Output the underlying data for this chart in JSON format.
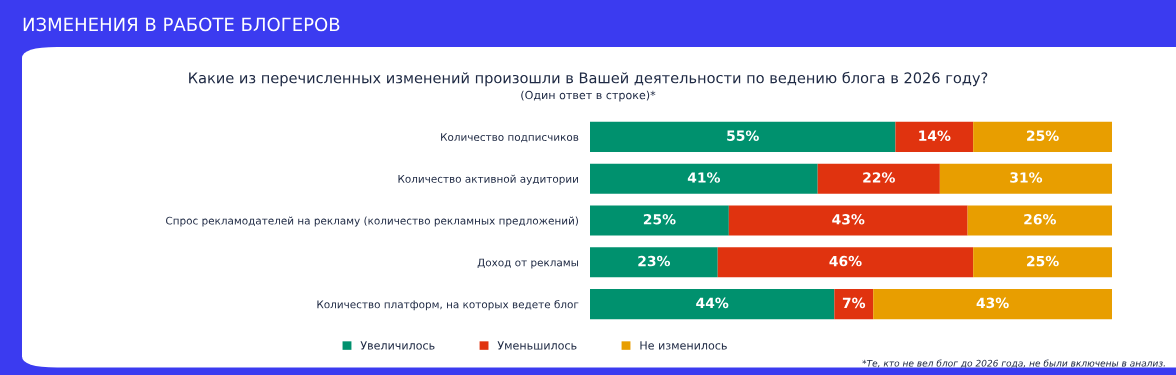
{
  "chart_data": {
    "type": "bar",
    "orientation": "horizontal",
    "stacked": true,
    "legend": "bottom",
    "title": "ИЗМЕНЕНИЯ В РАБОТЕ БЛОГЕРОВ",
    "subtitle": "Какие из перечисленных изменений произошли в Вашей деятельности по ведению блога в 2026 году?",
    "annotations": [
      "(Один ответ в строке)*",
      "*Те, кто не вел блог до 2026 года, не были включены в анализ."
    ],
    "categories": [
      "Количество подписчиков",
      "Количество активной аудитории",
      "Спрос рекламодателей на рекламу (количество рекламных предложений)",
      "Доход от рекламы",
      "Количество платформ, на которых ведете блог"
    ],
    "series": [
      {
        "name": "Увеличилось",
        "color": "#00916e",
        "values": [
          55,
          41,
          25,
          23,
          44
        ],
        "value_labels": [
          "55%",
          "41%",
          "25%",
          "23%",
          "44%"
        ]
      },
      {
        "name": "Уменьшилось",
        "color": "#e0330f",
        "values": [
          14,
          22,
          43,
          46,
          7
        ],
        "value_labels": [
          "14%",
          "22%",
          "43%",
          "46%",
          "7%"
        ]
      },
      {
        "name": "Не изменилось",
        "color": "#e89e00",
        "values": [
          25,
          31,
          26,
          25,
          43
        ],
        "value_labels": [
          "25%",
          "31%",
          "26%",
          "25%",
          "43%"
        ]
      }
    ]
  }
}
